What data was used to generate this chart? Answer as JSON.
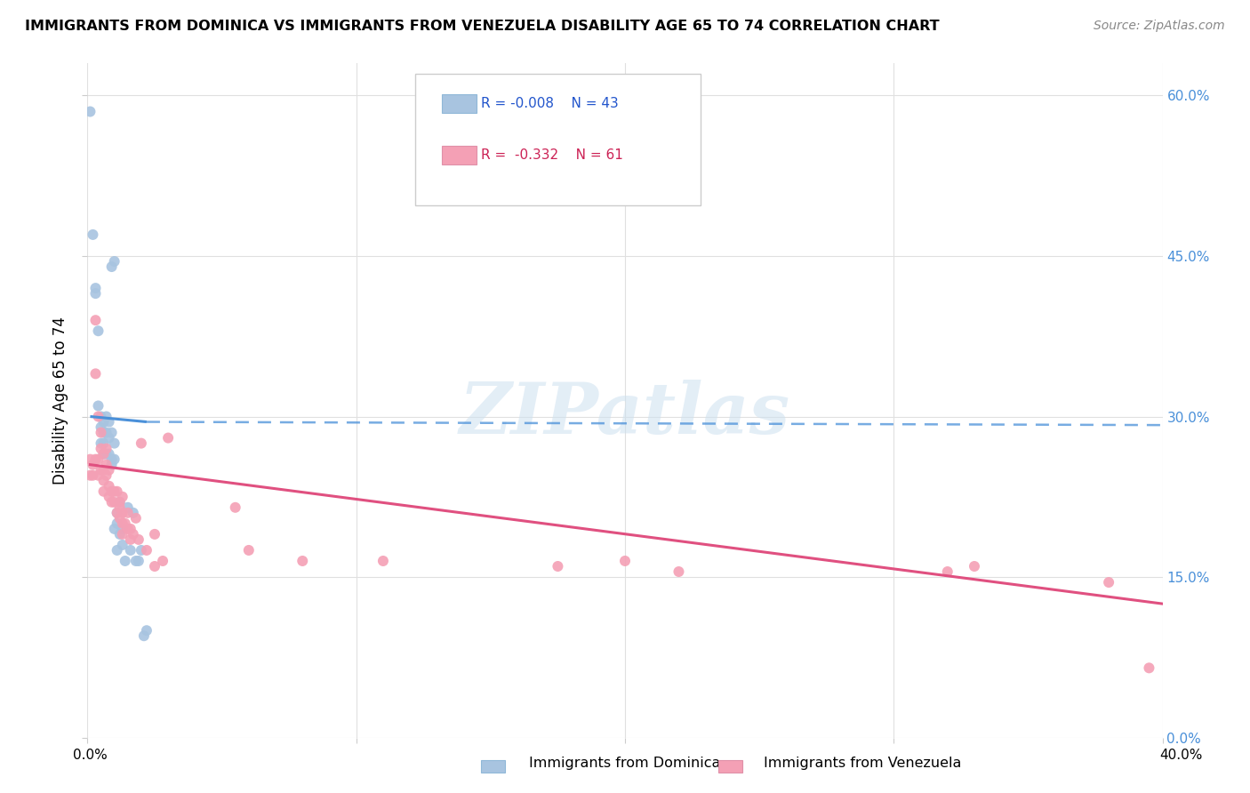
{
  "title": "IMMIGRANTS FROM DOMINICA VS IMMIGRANTS FROM VENEZUELA DISABILITY AGE 65 TO 74 CORRELATION CHART",
  "source": "Source: ZipAtlas.com",
  "ylabel": "Disability Age 65 to 74",
  "ytick_labels": [
    "0.0%",
    "15.0%",
    "30.0%",
    "45.0%",
    "60.0%"
  ],
  "ytick_values": [
    0.0,
    0.15,
    0.3,
    0.45,
    0.6
  ],
  "xlim": [
    0.0,
    0.4
  ],
  "ylim": [
    0.0,
    0.63
  ],
  "color_dominica": "#a8c4e0",
  "color_venezuela": "#f4a0b5",
  "color_dominica_line_solid": "#4a90d9",
  "color_venezuela_line": "#e05080",
  "watermark": "ZIPatlas",
  "legend_label1": "Immigrants from Dominica",
  "legend_label2": "Immigrants from Venezuela",
  "dominica_r": "-0.008",
  "dominica_n": "43",
  "venezuela_r": "-0.332",
  "venezuela_n": "61",
  "dom_line_start_x": 0.001,
  "dom_line_end_solid_x": 0.022,
  "dom_line_end_x": 0.4,
  "dom_line_y_intercept": 0.295,
  "dom_line_slope": -0.15,
  "ven_line_start_x": 0.001,
  "ven_line_end_x": 0.4,
  "ven_line_y_at_start": 0.255,
  "ven_line_y_at_end": 0.125,
  "dominica_points_x": [
    0.001,
    0.002,
    0.003,
    0.003,
    0.004,
    0.004,
    0.005,
    0.005,
    0.005,
    0.006,
    0.006,
    0.006,
    0.006,
    0.007,
    0.007,
    0.007,
    0.008,
    0.008,
    0.008,
    0.009,
    0.009,
    0.009,
    0.01,
    0.01,
    0.01,
    0.011,
    0.011,
    0.012,
    0.012,
    0.013,
    0.014,
    0.015,
    0.016,
    0.017,
    0.018,
    0.019,
    0.02,
    0.021,
    0.022,
    0.009,
    0.01,
    0.011,
    0.013
  ],
  "dominica_points_y": [
    0.585,
    0.47,
    0.42,
    0.415,
    0.38,
    0.31,
    0.3,
    0.29,
    0.275,
    0.295,
    0.285,
    0.275,
    0.265,
    0.3,
    0.285,
    0.265,
    0.295,
    0.28,
    0.265,
    0.255,
    0.285,
    0.26,
    0.275,
    0.26,
    0.195,
    0.21,
    0.2,
    0.22,
    0.19,
    0.18,
    0.165,
    0.215,
    0.175,
    0.21,
    0.165,
    0.165,
    0.175,
    0.095,
    0.1,
    0.44,
    0.445,
    0.175,
    0.195
  ],
  "venezuela_points_x": [
    0.001,
    0.001,
    0.002,
    0.002,
    0.003,
    0.003,
    0.003,
    0.004,
    0.004,
    0.004,
    0.005,
    0.005,
    0.005,
    0.006,
    0.006,
    0.006,
    0.006,
    0.007,
    0.007,
    0.007,
    0.008,
    0.008,
    0.008,
    0.009,
    0.009,
    0.01,
    0.01,
    0.011,
    0.011,
    0.012,
    0.012,
    0.012,
    0.013,
    0.013,
    0.013,
    0.013,
    0.014,
    0.015,
    0.015,
    0.016,
    0.016,
    0.017,
    0.018,
    0.019,
    0.02,
    0.022,
    0.025,
    0.025,
    0.028,
    0.03,
    0.055,
    0.06,
    0.08,
    0.11,
    0.175,
    0.2,
    0.22,
    0.32,
    0.33,
    0.38,
    0.395
  ],
  "venezuela_points_y": [
    0.26,
    0.245,
    0.255,
    0.245,
    0.39,
    0.34,
    0.26,
    0.3,
    0.26,
    0.245,
    0.285,
    0.27,
    0.25,
    0.265,
    0.25,
    0.24,
    0.23,
    0.27,
    0.255,
    0.245,
    0.25,
    0.235,
    0.225,
    0.23,
    0.22,
    0.23,
    0.22,
    0.23,
    0.21,
    0.22,
    0.215,
    0.205,
    0.225,
    0.21,
    0.2,
    0.19,
    0.2,
    0.21,
    0.195,
    0.195,
    0.185,
    0.19,
    0.205,
    0.185,
    0.275,
    0.175,
    0.16,
    0.19,
    0.165,
    0.28,
    0.215,
    0.175,
    0.165,
    0.165,
    0.16,
    0.165,
    0.155,
    0.155,
    0.16,
    0.145,
    0.065
  ]
}
